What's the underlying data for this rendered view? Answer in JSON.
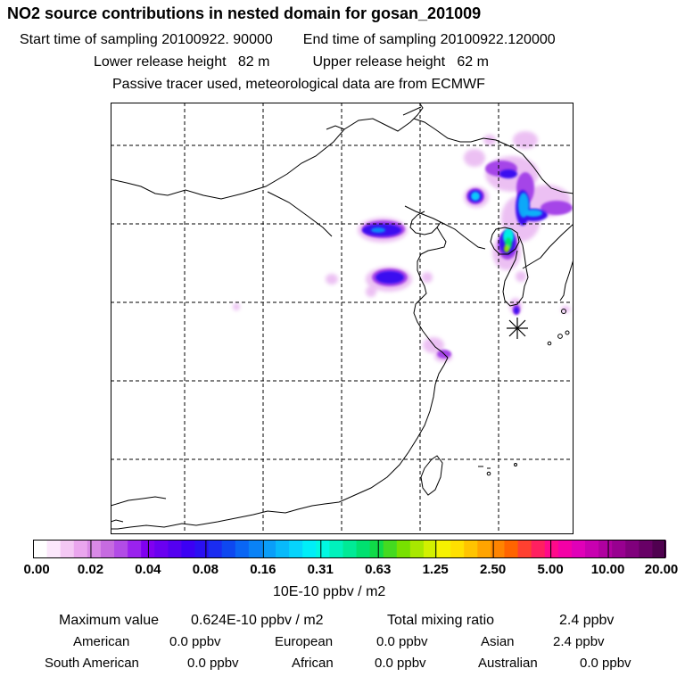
{
  "header": {
    "title": "NO2 source contributions in nested domain for gosan_201009",
    "start_label": "Start time of sampling",
    "start_value": "20100922. 90000",
    "end_label": "End time of sampling",
    "end_value": "20100922.120000",
    "lower_label": "Lower release height",
    "lower_value": "82 m",
    "upper_label": "Upper release height",
    "upper_value": "62 m",
    "note": "Passive tracer used, meteorological data are from ECMWF"
  },
  "colorbar": {
    "ticks": [
      "0.00",
      "0.02",
      "0.04",
      "0.08",
      "0.16",
      "0.31",
      "0.63",
      "1.25",
      "2.50",
      "5.00",
      "10.00",
      "20.00"
    ],
    "colors": [
      "#ffffff",
      "#fce8fc",
      "#f4c8f4",
      "#eaa6ee",
      "#d98ae6",
      "#c66be0",
      "#b24ce6",
      "#9a22ee",
      "#8000f0",
      "#6a00f0",
      "#5400f0",
      "#3c00f4",
      "#2a10f2",
      "#1a2cf0",
      "#0e48f0",
      "#0a66f4",
      "#0a82f6",
      "#0a9ef8",
      "#08bafa",
      "#06d4fc",
      "#00eef8",
      "#00f8e2",
      "#00f2bc",
      "#00ea96",
      "#00e070",
      "#10da48",
      "#44da20",
      "#78e000",
      "#a8e800",
      "#d2f000",
      "#f6f200",
      "#ffe000",
      "#ffc400",
      "#ffa400",
      "#ff8400",
      "#ff6400",
      "#ff4030",
      "#ff2060",
      "#ff0a8a",
      "#f400a6",
      "#e000b8",
      "#c800b0",
      "#b000a0",
      "#980090",
      "#80007c",
      "#680066",
      "#500050"
    ],
    "units": "10E-10 ppbv / m2"
  },
  "stats": {
    "max_label": "Maximum value",
    "max_value": "0.624E-10 ppbv / m2",
    "total_label": "Total mixing ratio",
    "total_value": "2.4 ppbv",
    "regions": [
      {
        "name": "American",
        "value": "0.0 ppbv"
      },
      {
        "name": "European",
        "value": "0.0 ppbv"
      },
      {
        "name": "Asian",
        "value": "2.4 ppbv"
      },
      {
        "name": "South American",
        "value": "0.0 ppbv"
      },
      {
        "name": "African",
        "value": "0.0 ppbv"
      },
      {
        "name": "Australian",
        "value": "0.0 ppbv"
      }
    ]
  },
  "map": {
    "site_marker": "star-icon"
  }
}
